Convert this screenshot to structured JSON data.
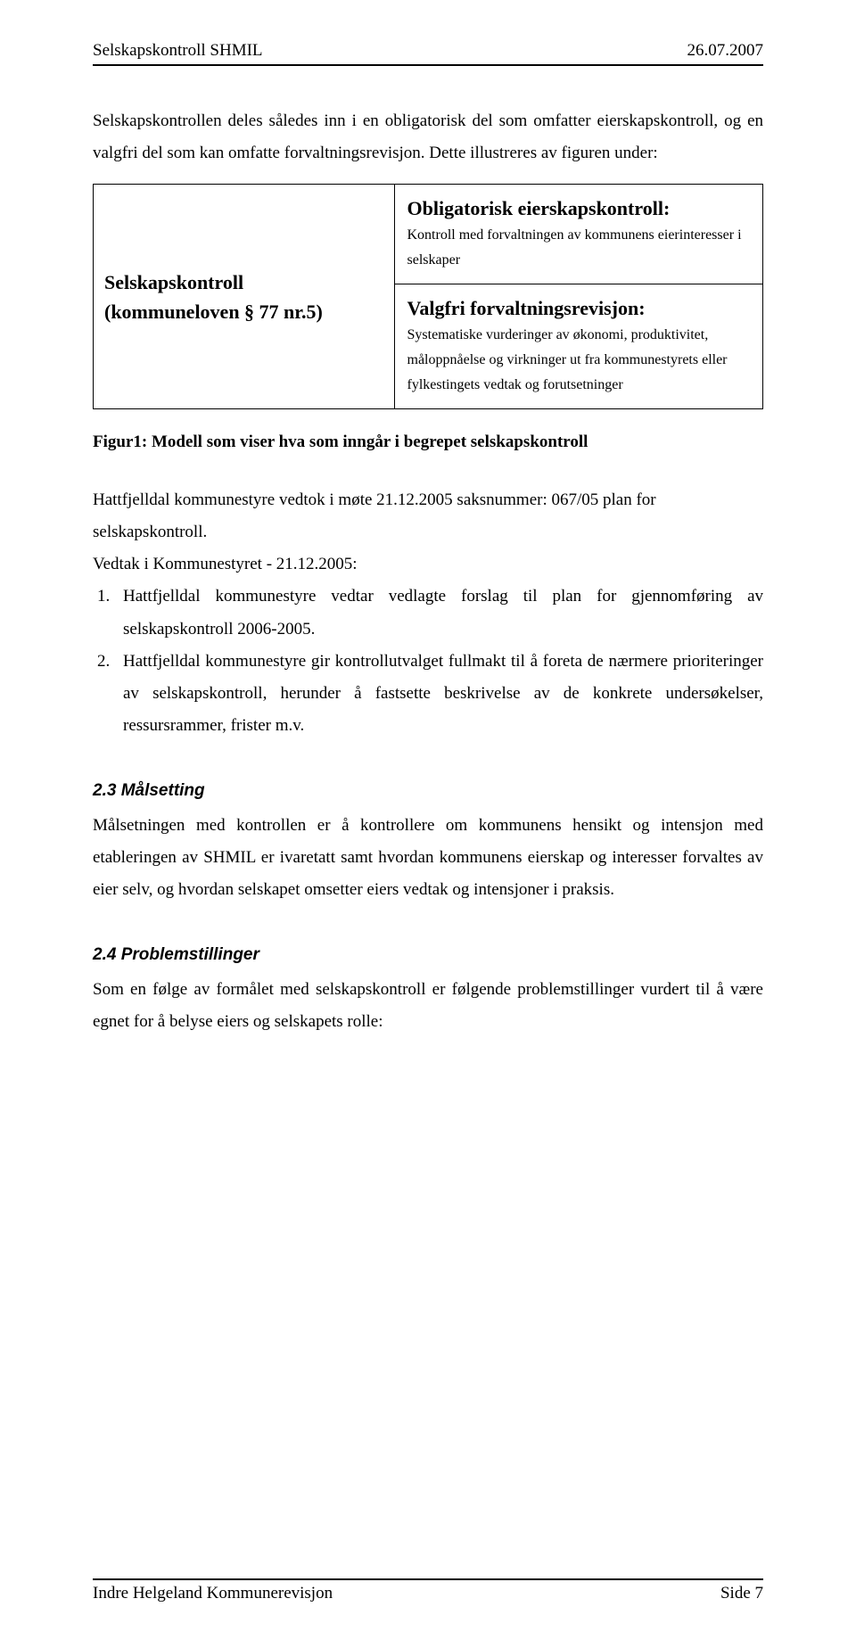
{
  "header": {
    "left": "Selskapskontroll SHMIL",
    "right": "26.07.2007"
  },
  "intro": {
    "p1": "Selskapskontrollen deles således inn i en obligatorisk del som omfatter eierskapskontroll, og en valgfri del som kan omfatte forvaltningsrevisjon. Dette illustreres av figuren under:"
  },
  "table": {
    "left_line1": "Selskapskontroll",
    "left_line2": "(kommuneloven § 77 nr.5)",
    "top_title": "Obligatorisk eierskapskontroll:",
    "top_body": "Kontroll med forvaltningen av kommunens eierinteresser i selskaper",
    "bot_title": "Valgfri forvaltningsrevisjon:",
    "bot_body": "Systematiske vurderinger av økonomi, produktivitet, måloppnåelse og virkninger ut fra kommunestyrets eller fylkestingets vedtak og forutsetninger"
  },
  "fig_caption": "Figur1: Modell som viser hva som inngår i begrepet selskapskontroll",
  "body": {
    "p2": "Hattfjelldal kommunestyre vedtok i møte 21.12.2005 saksnummer: 067/05 plan for selskapskontroll.",
    "p3": "Vedtak i Kommunestyret - 21.12.2005:",
    "li1": "Hattfjelldal kommunestyre vedtar vedlagte forslag til plan for gjennomføring av selskapskontroll 2006-2005.",
    "li2": "Hattfjelldal kommunestyre gir kontrollutvalget fullmakt til å foreta de nærmere prioriteringer av selskapskontroll, herunder å fastsette beskrivelse av de konkrete undersøkelser, ressursrammer, frister m.v."
  },
  "sec23": {
    "title": "2.3 Målsetting",
    "body": "Målsetningen med kontrollen er å kontrollere om kommunens hensikt og intensjon med etableringen av SHMIL er ivaretatt samt hvordan kommunens eierskap og interesser forvaltes av eier selv, og hvordan selskapet omsetter eiers vedtak og intensjoner i praksis."
  },
  "sec24": {
    "title": "2.4 Problemstillinger",
    "body": "Som en følge av formålet med selskapskontroll er følgende problemstillinger vurdert til å være egnet for å belyse eiers og selskapets rolle:"
  },
  "footer": {
    "left": "Indre Helgeland Kommunerevisjon",
    "right": "Side 7"
  }
}
